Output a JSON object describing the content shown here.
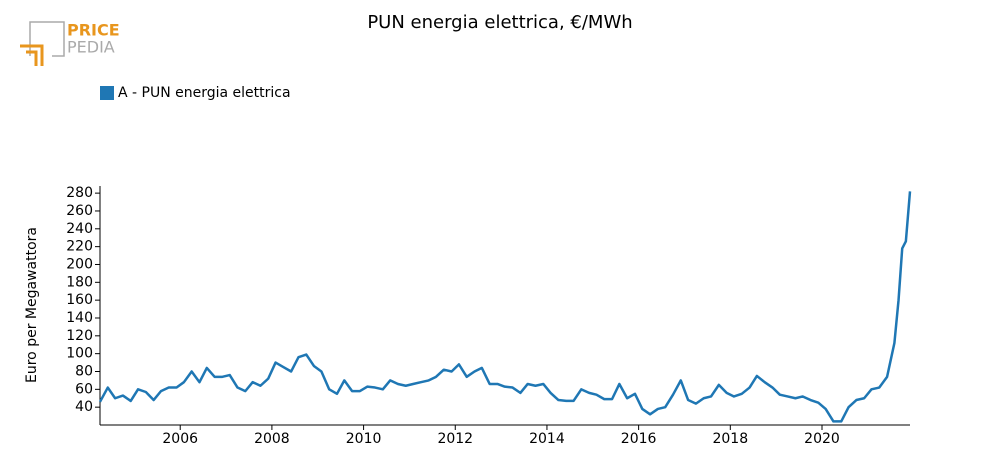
{
  "logo": {
    "top": "PRICE",
    "bottom": "PEDIA"
  },
  "chart_data": {
    "type": "line",
    "title": "PUN energia elettrica, €/MWh",
    "y_label": "Euro per Megawattora",
    "x": [
      2004.25,
      2004.42,
      2004.58,
      2004.75,
      2004.92,
      2005.08,
      2005.25,
      2005.42,
      2005.58,
      2005.75,
      2005.92,
      2006.08,
      2006.25,
      2006.42,
      2006.58,
      2006.75,
      2006.92,
      2007.08,
      2007.25,
      2007.42,
      2007.58,
      2007.75,
      2007.92,
      2008.08,
      2008.25,
      2008.42,
      2008.58,
      2008.75,
      2008.92,
      2009.08,
      2009.25,
      2009.42,
      2009.58,
      2009.75,
      2009.92,
      2010.08,
      2010.25,
      2010.42,
      2010.58,
      2010.75,
      2010.92,
      2011.08,
      2011.25,
      2011.42,
      2011.58,
      2011.75,
      2011.92,
      2012.08,
      2012.25,
      2012.42,
      2012.58,
      2012.75,
      2012.92,
      2013.08,
      2013.25,
      2013.42,
      2013.58,
      2013.75,
      2013.92,
      2014.08,
      2014.25,
      2014.42,
      2014.58,
      2014.75,
      2014.92,
      2015.08,
      2015.25,
      2015.42,
      2015.58,
      2015.75,
      2015.92,
      2016.08,
      2016.25,
      2016.42,
      2016.58,
      2016.75,
      2016.92,
      2017.08,
      2017.25,
      2017.42,
      2017.58,
      2017.75,
      2017.92,
      2018.08,
      2018.25,
      2018.42,
      2018.58,
      2018.75,
      2018.92,
      2019.08,
      2019.25,
      2019.42,
      2019.58,
      2019.75,
      2019.92,
      2020.08,
      2020.25,
      2020.42,
      2020.58,
      2020.75,
      2020.92,
      2021.08,
      2021.25,
      2021.42,
      2021.58,
      2021.67,
      2021.75,
      2021.83,
      2021.92
    ],
    "series": [
      {
        "name": "A - PUN energia elettrica",
        "color": "#1f77b4",
        "values": [
          46,
          62,
          50,
          53,
          47,
          60,
          57,
          48,
          58,
          62,
          62,
          68,
          80,
          68,
          84,
          74,
          74,
          76,
          62,
          58,
          68,
          64,
          72,
          90,
          85,
          80,
          96,
          99,
          86,
          80,
          60,
          55,
          70,
          58,
          58,
          63,
          62,
          60,
          70,
          66,
          64,
          66,
          68,
          70,
          74,
          82,
          80,
          88,
          74,
          80,
          84,
          66,
          66,
          63,
          62,
          56,
          66,
          64,
          66,
          56,
          48,
          47,
          47,
          60,
          56,
          54,
          49,
          49,
          66,
          50,
          55,
          38,
          32,
          38,
          40,
          54,
          70,
          48,
          44,
          50,
          52,
          65,
          56,
          52,
          55,
          62,
          75,
          68,
          62,
          54,
          52,
          50,
          52,
          48,
          45,
          38,
          24,
          24,
          40,
          48,
          50,
          60,
          62,
          74,
          112,
          160,
          218,
          226,
          282
        ]
      }
    ],
    "xlim": [
      2004.25,
      2021.92
    ],
    "xticks": [
      2006,
      2008,
      2010,
      2012,
      2014,
      2016,
      2018,
      2020
    ],
    "ylim": [
      20,
      288
    ],
    "yticks": [
      40,
      60,
      80,
      100,
      120,
      140,
      160,
      180,
      200,
      220,
      240,
      260,
      280
    ],
    "legend": "top-left"
  }
}
